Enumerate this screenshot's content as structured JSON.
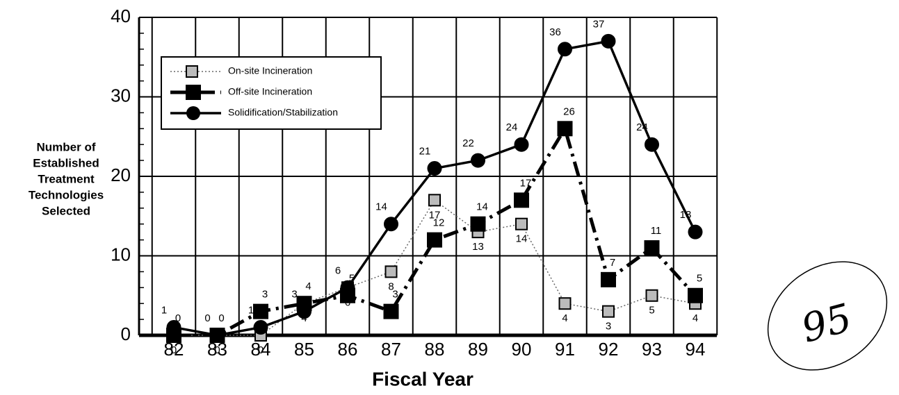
{
  "chart_data": {
    "type": "line",
    "categories": [
      "82",
      "83",
      "84",
      "85",
      "86",
      "87",
      "88",
      "89",
      "90",
      "91",
      "92",
      "93",
      "94"
    ],
    "series": [
      {
        "name": "On-site Incineration",
        "color": "#999999",
        "values": [
          0,
          0,
          0,
          4,
          6,
          8,
          17,
          13,
          14,
          4,
          3,
          5,
          4
        ]
      },
      {
        "name": "Off-site Incineration",
        "color": "#000000",
        "values": [
          0,
          0,
          3,
          4,
          5,
          3,
          12,
          14,
          17,
          26,
          7,
          11,
          5
        ]
      },
      {
        "name": "Solidification/Stabilization",
        "color": "#000000",
        "values": [
          1,
          0,
          1,
          3,
          6,
          14,
          21,
          22,
          24,
          36,
          37,
          24,
          13
        ]
      }
    ],
    "xlabel": "Fiscal Year",
    "ylabel": [
      "Number of",
      "Established",
      "Treatment",
      "Technologies",
      "Selected"
    ],
    "ylim": [
      0,
      40
    ],
    "yticks": [
      0,
      10,
      20,
      30,
      40
    ],
    "grid": true,
    "legend": "upper left",
    "annotation": "95"
  }
}
